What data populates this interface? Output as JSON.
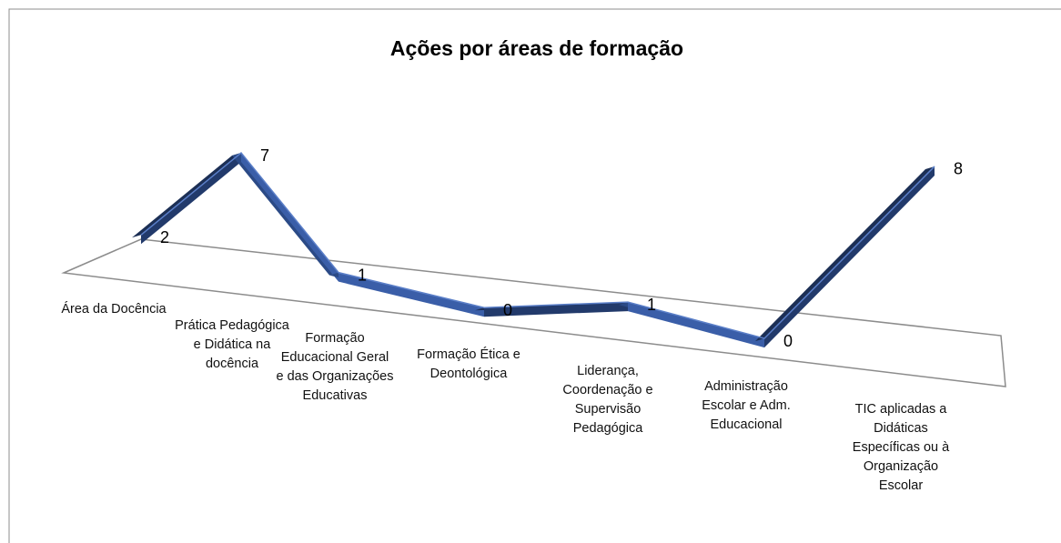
{
  "chart_data": {
    "type": "line",
    "title": "Ações por áreas de formação",
    "categories": [
      "Área da Docência",
      "Prática Pedagógica e Didática na docência",
      "Formação Educacional Geral e das Organizações Educativas",
      "Formação Ética e Deontológica",
      "Liderança, Coordenação e Supervisão Pedagógica",
      "Administração Escolar e Adm. Educacional",
      "TIC aplicadas a Didáticas Específicas ou à Organização Escolar"
    ],
    "values": [
      2,
      7,
      1,
      0,
      1,
      0,
      8
    ],
    "color": "#3a5ea8"
  }
}
